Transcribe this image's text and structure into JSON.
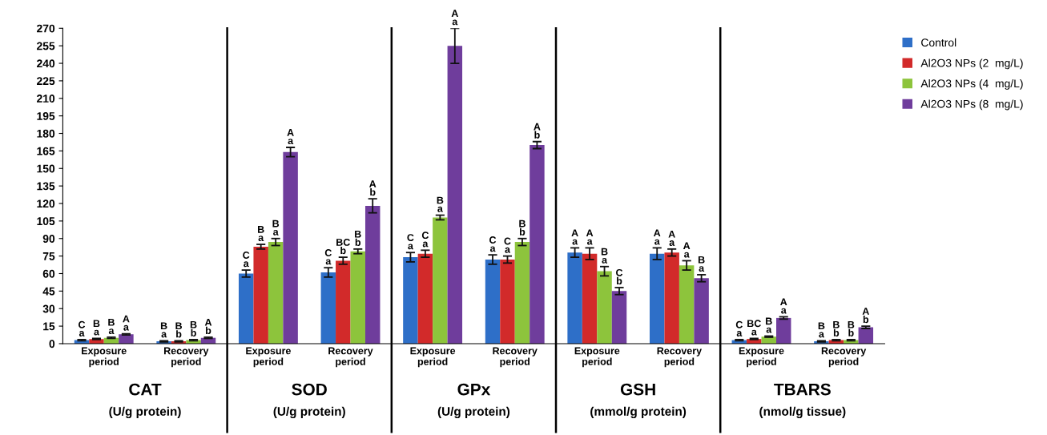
{
  "chart_data": {
    "type": "bar",
    "categories": [
      "Exposure\nperiod",
      "Recovery\nperiod",
      "Exposure\nperiod",
      "Recovery\nperiod",
      "Exposure\nperiod",
      "Recovery\nperiod",
      "Exposure\nperiod",
      "Recovery\nperiod",
      "Exposure\nperiod",
      "Recovery\nperiod"
    ],
    "series": [
      {
        "name": "Control",
        "color": "#2e6fc8",
        "values": [
          3,
          2,
          60,
          61,
          74,
          72,
          78,
          77,
          3,
          2
        ],
        "errors": [
          0.5,
          0.5,
          3,
          4,
          4,
          4,
          4,
          5,
          0.5,
          0.5
        ],
        "value_labels": [
          "C\na",
          "B\na",
          "C\na",
          "C\na",
          "C\na",
          "C\na",
          "A\na",
          "A\na",
          "C\na",
          "B\na"
        ]
      },
      {
        "name": "Al2O3 NPs (2  mg/L)",
        "color": "#d22a2a",
        "values": [
          4,
          2,
          83,
          71,
          77,
          72,
          77,
          78,
          4,
          3
        ],
        "errors": [
          0.5,
          0.5,
          2,
          3,
          3,
          3,
          5,
          3,
          0.5,
          0.5
        ],
        "value_labels": [
          "B\na",
          "B\nb",
          "B\na",
          "BC\nb",
          "C\na",
          "C\na",
          "A\na",
          "A\na",
          "BC\na",
          "B\nb"
        ]
      },
      {
        "name": "Al2O3 NPs (4  mg/L)",
        "color": "#8dc43c",
        "values": [
          5,
          3,
          87,
          79,
          108,
          87,
          62,
          67,
          6,
          3
        ],
        "errors": [
          0.5,
          0.5,
          3,
          2,
          2,
          3,
          4,
          4,
          0.5,
          0.5
        ],
        "value_labels": [
          "B\na",
          "B\nb",
          "B\na",
          "B\nb",
          "B\na",
          "B\nb",
          "B\na",
          "A\na",
          "B\na",
          "B\nb"
        ]
      },
      {
        "name": "Al2O3 NPs (8  mg/L)",
        "color": "#6f3d9c",
        "values": [
          8,
          5,
          164,
          118,
          255,
          170,
          45,
          56,
          22,
          14
        ],
        "errors": [
          0.5,
          0.5,
          4,
          6,
          15,
          3,
          3,
          3,
          1,
          1
        ],
        "value_labels": [
          "A\na",
          "A\nb",
          "A\na",
          "A\nb",
          "A\na",
          "A\nb",
          "C\nb",
          "B\na",
          "A\na",
          "A\nb"
        ]
      }
    ],
    "ylim": [
      0,
      270
    ],
    "yticks": [
      0,
      15,
      30,
      45,
      60,
      75,
      90,
      105,
      120,
      135,
      150,
      165,
      180,
      195,
      210,
      225,
      240,
      255,
      270
    ],
    "annotations": [
      "CAT",
      "(U/g protein)",
      "SOD",
      "(U/g protein)",
      "GPx",
      "(U/g protein)",
      "GSH",
      "(mmol/g protein)",
      "TBARS",
      "(nmol/g tissue)"
    ],
    "grid": false,
    "legend": "top right"
  }
}
